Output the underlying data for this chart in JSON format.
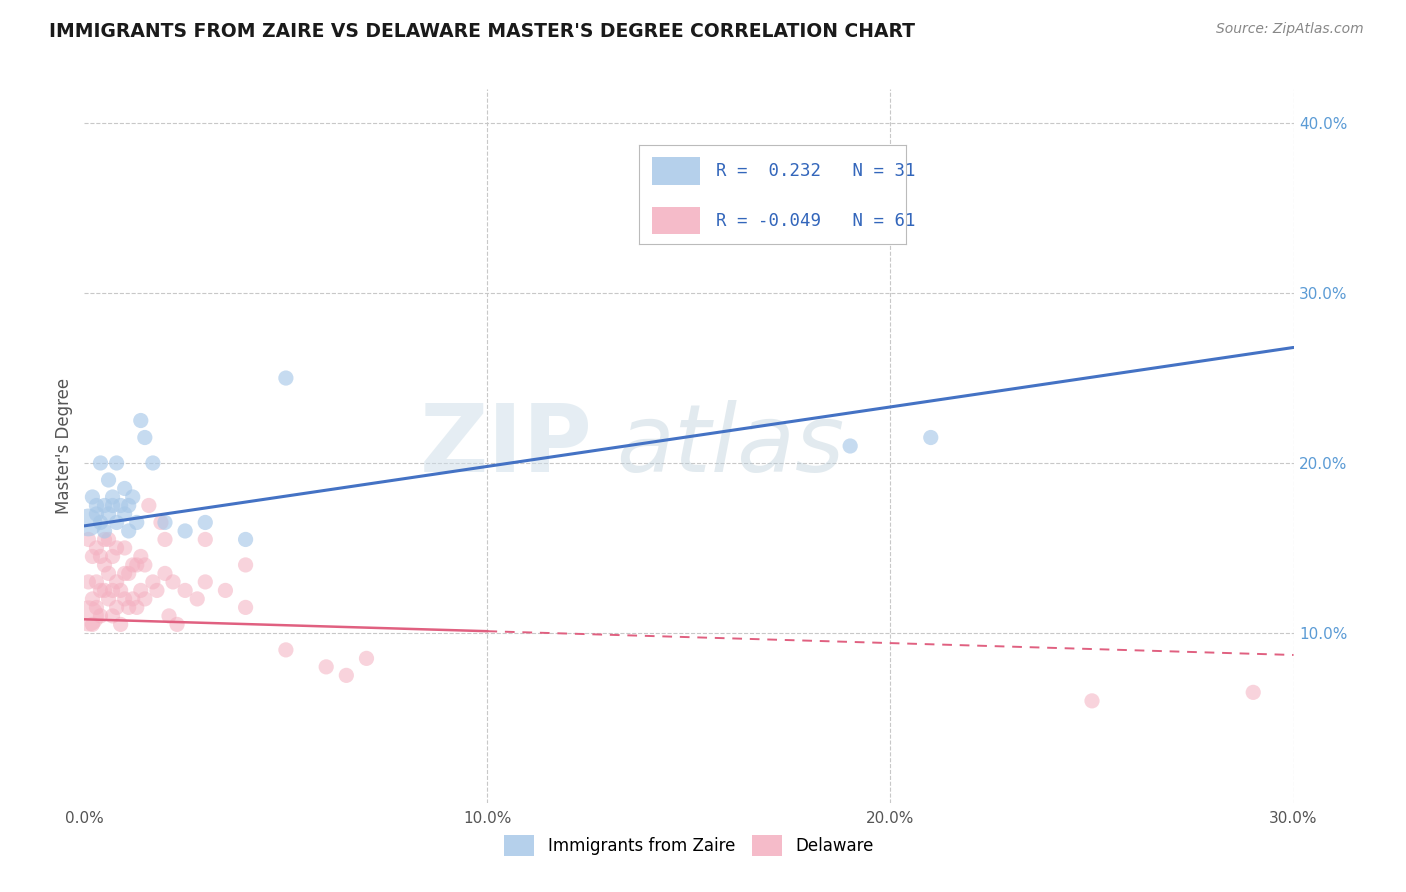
{
  "title": "IMMIGRANTS FROM ZAIRE VS DELAWARE MASTER'S DEGREE CORRELATION CHART",
  "source_text": "Source: ZipAtlas.com",
  "ylabel": "Master's Degree",
  "xlim": [
    0.0,
    0.3
  ],
  "ylim": [
    0.0,
    0.42
  ],
  "x_tick_labels": [
    "0.0%",
    "10.0%",
    "20.0%",
    "30.0%"
  ],
  "x_tick_vals": [
    0.0,
    0.1,
    0.2,
    0.3
  ],
  "y_tick_labels_right": [
    "40.0%",
    "30.0%",
    "20.0%",
    "10.0%"
  ],
  "y_tick_vals_right": [
    0.4,
    0.3,
    0.2,
    0.1
  ],
  "legend_blue_label": "Immigrants from Zaire",
  "legend_pink_label": "Delaware",
  "R_blue": "0.232",
  "N_blue": "31",
  "R_pink": "-0.049",
  "N_pink": "61",
  "blue_color": "#a8c8e8",
  "pink_color": "#f4b0c0",
  "blue_line_color": "#4472c4",
  "pink_line_color": "#e06080",
  "watermark_zip": "ZIP",
  "watermark_atlas": "atlas",
  "background_color": "#ffffff",
  "grid_color": "#c8c8c8",
  "blue_scatter_x": [
    0.001,
    0.002,
    0.003,
    0.003,
    0.004,
    0.004,
    0.005,
    0.005,
    0.006,
    0.006,
    0.007,
    0.007,
    0.008,
    0.008,
    0.009,
    0.01,
    0.01,
    0.011,
    0.011,
    0.012,
    0.013,
    0.014,
    0.015,
    0.017,
    0.02,
    0.025,
    0.03,
    0.04,
    0.05,
    0.19,
    0.21
  ],
  "blue_scatter_y": [
    0.165,
    0.18,
    0.17,
    0.175,
    0.165,
    0.2,
    0.175,
    0.16,
    0.17,
    0.19,
    0.175,
    0.18,
    0.165,
    0.2,
    0.175,
    0.185,
    0.17,
    0.175,
    0.16,
    0.18,
    0.165,
    0.225,
    0.215,
    0.2,
    0.165,
    0.16,
    0.165,
    0.155,
    0.25,
    0.21,
    0.215
  ],
  "pink_scatter_x": [
    0.001,
    0.001,
    0.001,
    0.002,
    0.002,
    0.002,
    0.003,
    0.003,
    0.003,
    0.004,
    0.004,
    0.004,
    0.005,
    0.005,
    0.005,
    0.006,
    0.006,
    0.006,
    0.007,
    0.007,
    0.007,
    0.008,
    0.008,
    0.008,
    0.009,
    0.009,
    0.01,
    0.01,
    0.01,
    0.011,
    0.011,
    0.012,
    0.012,
    0.013,
    0.013,
    0.014,
    0.014,
    0.015,
    0.015,
    0.016,
    0.017,
    0.018,
    0.019,
    0.02,
    0.02,
    0.021,
    0.022,
    0.023,
    0.025,
    0.028,
    0.03,
    0.03,
    0.035,
    0.04,
    0.04,
    0.05,
    0.06,
    0.065,
    0.07,
    0.25,
    0.29
  ],
  "pink_scatter_y": [
    0.11,
    0.13,
    0.155,
    0.105,
    0.12,
    0.145,
    0.115,
    0.13,
    0.15,
    0.11,
    0.125,
    0.145,
    0.125,
    0.14,
    0.155,
    0.12,
    0.135,
    0.155,
    0.11,
    0.125,
    0.145,
    0.115,
    0.13,
    0.15,
    0.105,
    0.125,
    0.12,
    0.135,
    0.15,
    0.115,
    0.135,
    0.12,
    0.14,
    0.115,
    0.14,
    0.125,
    0.145,
    0.12,
    0.14,
    0.175,
    0.13,
    0.125,
    0.165,
    0.135,
    0.155,
    0.11,
    0.13,
    0.105,
    0.125,
    0.12,
    0.13,
    0.155,
    0.125,
    0.115,
    0.14,
    0.09,
    0.08,
    0.075,
    0.085,
    0.06,
    0.065
  ],
  "blue_bubble_sizes_small": 120,
  "blue_bubble_sizes_large": 400,
  "pink_bubble_sizes_small": 120,
  "pink_bubble_sizes_large": 500,
  "blue_line_start_x": 0.0,
  "blue_line_start_y": 0.163,
  "blue_line_end_x": 0.3,
  "blue_line_end_y": 0.268,
  "pink_line_start_x": 0.0,
  "pink_line_start_y": 0.108,
  "pink_line_end_x": 0.3,
  "pink_line_end_y": 0.087
}
